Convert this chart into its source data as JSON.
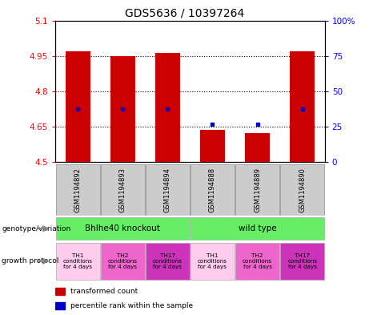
{
  "title": "GDS5636 / 10397264",
  "samples": [
    "GSM1194892",
    "GSM1194893",
    "GSM1194894",
    "GSM1194888",
    "GSM1194889",
    "GSM1194890"
  ],
  "transformed_counts": [
    4.968,
    4.95,
    4.963,
    4.638,
    4.623,
    4.968
  ],
  "percentile_ranks": [
    4.726,
    4.726,
    4.726,
    4.662,
    4.662,
    4.726
  ],
  "ymin": 4.5,
  "ymax": 5.1,
  "yright_min": 0,
  "yright_max": 100,
  "yticks_left": [
    4.5,
    4.65,
    4.8,
    4.95,
    5.1
  ],
  "yticks_right": [
    0,
    25,
    50,
    75,
    100
  ],
  "bar_color": "#cc0000",
  "dot_color": "#0000cc",
  "bg_color": "#cccccc",
  "bar_width": 0.55,
  "green_color": "#66ee66",
  "proto_colors": [
    "#ffccee",
    "#ee66cc",
    "#cc33bb",
    "#ffccee",
    "#ee66cc",
    "#cc33bb"
  ],
  "proto_labels": [
    "TH1\nconditions\nfor 4 days",
    "TH2\nconditions\nfor 4 days",
    "TH17\nconditions\nfor 4 days",
    "TH1\nconditions\nfor 4 days",
    "TH2\nconditions\nfor 4 days",
    "TH17\nconditions\nfor 4 days"
  ]
}
